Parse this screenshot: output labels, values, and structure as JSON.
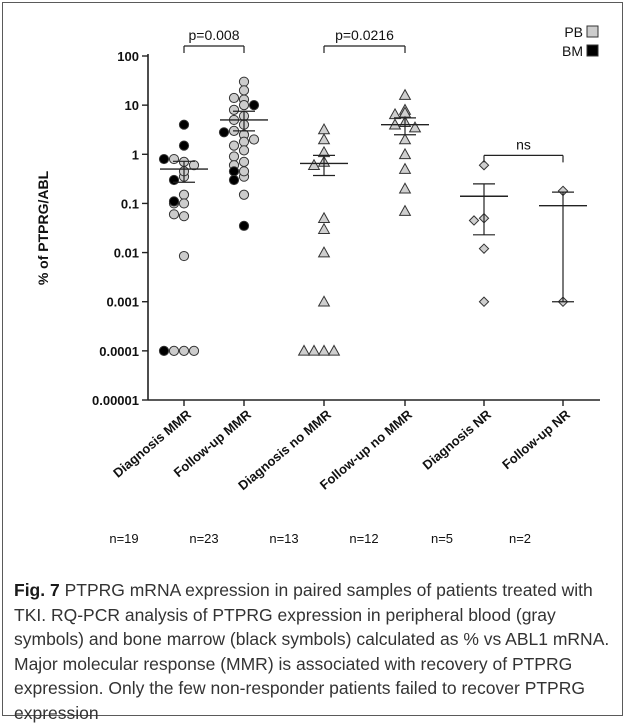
{
  "chart_data": {
    "type": "scatter",
    "y_scale": "log",
    "ylabel": "% of PTPRG/ABL",
    "ylim": [
      1e-05,
      100
    ],
    "yticks": [
      "100",
      "10",
      "1",
      "0.1",
      "0.01",
      "0.001",
      "0.0001",
      "0.00001"
    ],
    "categories": [
      "Diagnosis MMR",
      "Follow-up MMR",
      "Diagnosis no MMR",
      "Follow-up no MMR",
      "Diagnosis NR",
      "Follow-up NR"
    ],
    "n_labels": [
      "n=19",
      "n=23",
      "n=13",
      "n=12",
      "n=5",
      "n=2"
    ],
    "legend": [
      {
        "label": "PB",
        "color": "#cccccc"
      },
      {
        "label": "BM",
        "color": "#000000"
      }
    ],
    "legend_position": "top-right",
    "groups": [
      {
        "marker": "circle",
        "mean": 0.5,
        "sem": [
          0.27,
          0.72
        ],
        "pb": [
          0.7,
          0.35,
          0.8,
          0.6,
          0.45,
          0.15,
          0.1,
          0.055,
          0.06,
          0.1,
          0.0085,
          0.0001,
          0.0001,
          0.0001
        ],
        "bm": [
          4.0,
          1.5,
          0.8,
          0.3,
          0.11,
          0.0001
        ]
      },
      {
        "marker": "circle",
        "mean": 5.0,
        "sem": [
          3.0,
          7.5
        ],
        "pb": [
          30,
          20,
          13,
          14,
          10,
          8,
          6,
          5,
          4,
          2.5,
          3,
          2,
          1.8,
          1.5,
          1.2,
          0.9,
          0.7,
          0.6,
          0.35,
          0.45,
          0.15
        ],
        "bm": [
          10,
          2.8,
          0.45,
          0.3,
          0.035
        ]
      },
      {
        "marker": "triangle",
        "mean": 0.65,
        "sem": [
          0.37,
          0.95
        ],
        "pb": [
          3.2,
          2.0,
          1.1,
          0.7,
          0.6,
          0.05,
          0.03,
          0.01,
          0.001,
          0.0001,
          0.0001,
          0.0001,
          0.0001
        ],
        "bm": []
      },
      {
        "marker": "triangle",
        "mean": 4.0,
        "sem": [
          2.5,
          5.5
        ],
        "pb": [
          16,
          8,
          7,
          6.5,
          4.5,
          4,
          3.5,
          2,
          1,
          0.5,
          0.2,
          0.07
        ],
        "bm": []
      },
      {
        "marker": "diamond",
        "mean": 0.14,
        "sem": [
          0.023,
          0.25
        ],
        "pb": [
          0.6,
          0.05,
          0.045,
          0.012,
          0.001
        ],
        "bm": []
      },
      {
        "marker": "diamond",
        "mean": 0.09,
        "sem": [
          0.001,
          0.17
        ],
        "pb": [
          0.18,
          0.001
        ],
        "bm": []
      }
    ],
    "annotations": [
      {
        "text": "p=0.008",
        "from_group": 0,
        "to_group": 1,
        "y": 120
      },
      {
        "text": "p=0.0216",
        "from_group": 2,
        "to_group": 3,
        "y": 120
      },
      {
        "text": "ns",
        "from_group": 4,
        "to_group": 5,
        "y": 0.95
      }
    ]
  },
  "caption": {
    "label": "Fig. 7",
    "text": "PTPRG mRNA expression in paired samples of patients treated with TKI. RQ-PCR analysis of PTPRG expression in peripheral blood (gray symbols) and bone marrow (black symbols) calculated as % vs ABL1 mRNA. Major molecular response (MMR) is associated with recovery of PTPRG expression. Only the few non-responder patients failed to recover PTPRG expression"
  }
}
